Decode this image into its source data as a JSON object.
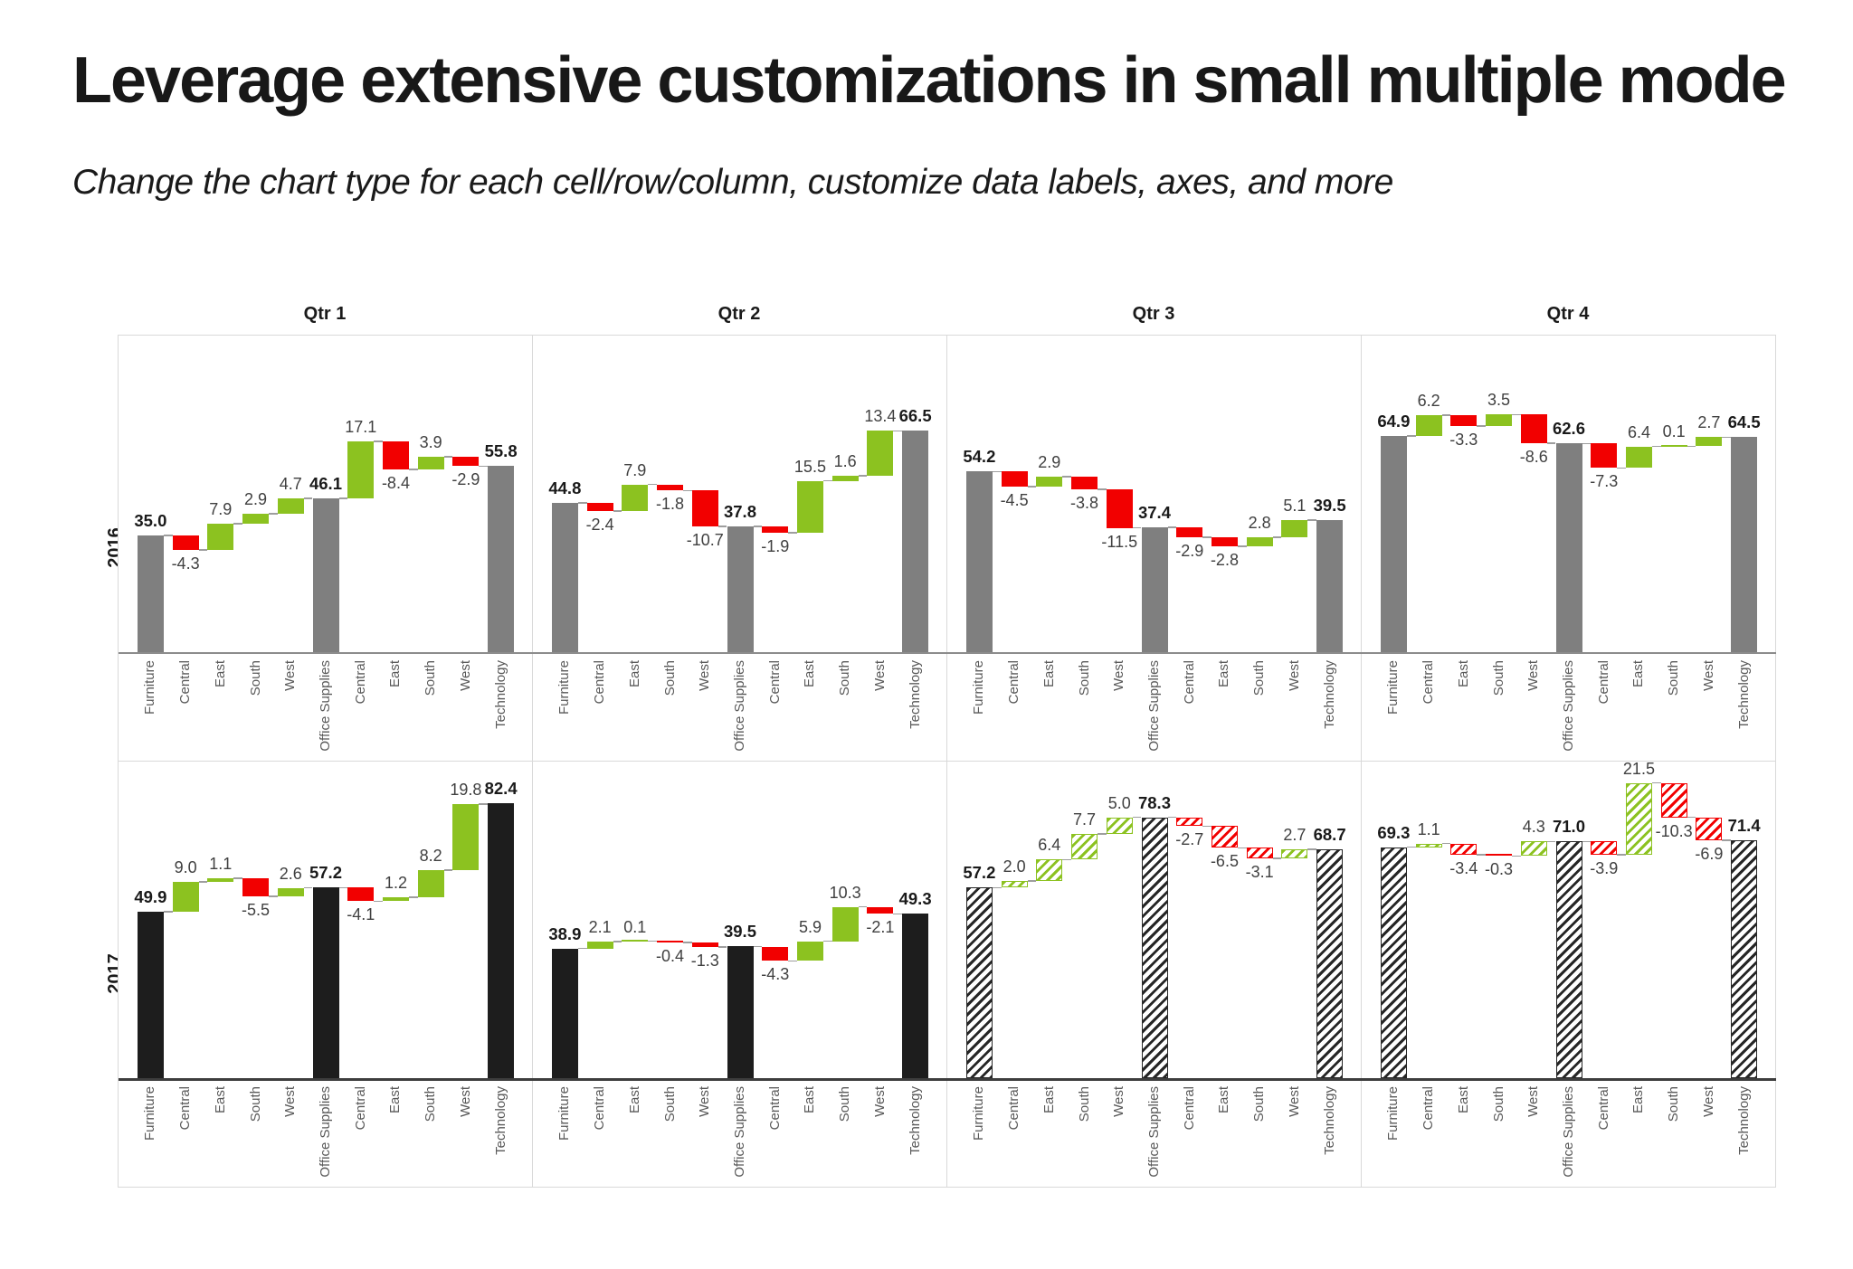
{
  "page": {
    "title": "Leverage extensive customizations in small multiple mode",
    "subtitle": "Change the chart type for each cell/row/column, customize data labels, axes, and more"
  },
  "small_multiples": {
    "column_headers": [
      "Qtr 1",
      "Qtr 2",
      "Qtr 3",
      "Qtr 4"
    ],
    "row_headers": [
      "2016",
      "2017"
    ]
  },
  "chart_data": {
    "type": "waterfall-small-multiples",
    "categories": [
      "Furniture",
      "Central",
      "East",
      "South",
      "West",
      "Office Supplies",
      "Central",
      "East",
      "South",
      "West",
      "Technology"
    ],
    "total_indices": [
      0,
      5,
      10
    ],
    "y_axis": {
      "min": 0,
      "scale_max": 95,
      "visible": false
    },
    "grid_lines": false,
    "legend": "none",
    "colors": {
      "positive": "#8CC220",
      "negative": "#F20000",
      "total_gray": "#7F7F7F",
      "total_black": "#1D1D1D",
      "hatch_total": "#262626",
      "connector": "#9E9E9E",
      "cell_border": "#D9D9D9"
    },
    "charts": [
      {
        "row": "2016",
        "column": "Qtr 1",
        "bar_style": "solid",
        "total_fill": "#7F7F7F",
        "values": [
          35.0,
          -4.3,
          7.9,
          2.9,
          4.7,
          46.1,
          17.1,
          -8.4,
          3.9,
          -2.9,
          55.8
        ]
      },
      {
        "row": "2016",
        "column": "Qtr 2",
        "bar_style": "solid",
        "total_fill": "#7F7F7F",
        "values": [
          44.8,
          -2.4,
          7.9,
          -1.8,
          -10.7,
          37.8,
          -1.9,
          15.5,
          1.6,
          13.4,
          66.5
        ]
      },
      {
        "row": "2016",
        "column": "Qtr 3",
        "bar_style": "solid",
        "total_fill": "#7F7F7F",
        "values": [
          54.2,
          -4.5,
          2.9,
          -3.8,
          -11.5,
          37.4,
          -2.9,
          -2.8,
          2.8,
          5.1,
          39.5
        ]
      },
      {
        "row": "2016",
        "column": "Qtr 4",
        "bar_style": "solid",
        "total_fill": "#7F7F7F",
        "values": [
          64.9,
          6.2,
          -3.3,
          3.5,
          -8.6,
          62.6,
          -7.3,
          6.4,
          0.1,
          2.7,
          64.5
        ]
      },
      {
        "row": "2017",
        "column": "Qtr 1",
        "bar_style": "solid",
        "total_fill": "#1D1D1D",
        "values": [
          49.9,
          9.0,
          1.1,
          -5.5,
          2.6,
          57.2,
          -4.1,
          1.2,
          8.2,
          19.8,
          82.4
        ]
      },
      {
        "row": "2017",
        "column": "Qtr 2",
        "bar_style": "solid",
        "total_fill": "#1D1D1D",
        "values": [
          38.9,
          2.1,
          0.1,
          -0.4,
          -1.3,
          39.5,
          -4.3,
          5.9,
          10.3,
          -2.1,
          49.3
        ]
      },
      {
        "row": "2017",
        "column": "Qtr 3",
        "bar_style": "hatched",
        "total_fill": "#262626",
        "values": [
          57.2,
          2.0,
          6.4,
          7.7,
          5.0,
          78.3,
          -2.7,
          -6.5,
          -3.1,
          2.7,
          68.7
        ]
      },
      {
        "row": "2017",
        "column": "Qtr 4",
        "bar_style": "hatched",
        "total_fill": "#262626",
        "values": [
          69.3,
          1.1,
          -3.4,
          -0.3,
          4.3,
          71.0,
          -3.9,
          21.5,
          -10.3,
          -6.9,
          71.4
        ]
      }
    ]
  }
}
